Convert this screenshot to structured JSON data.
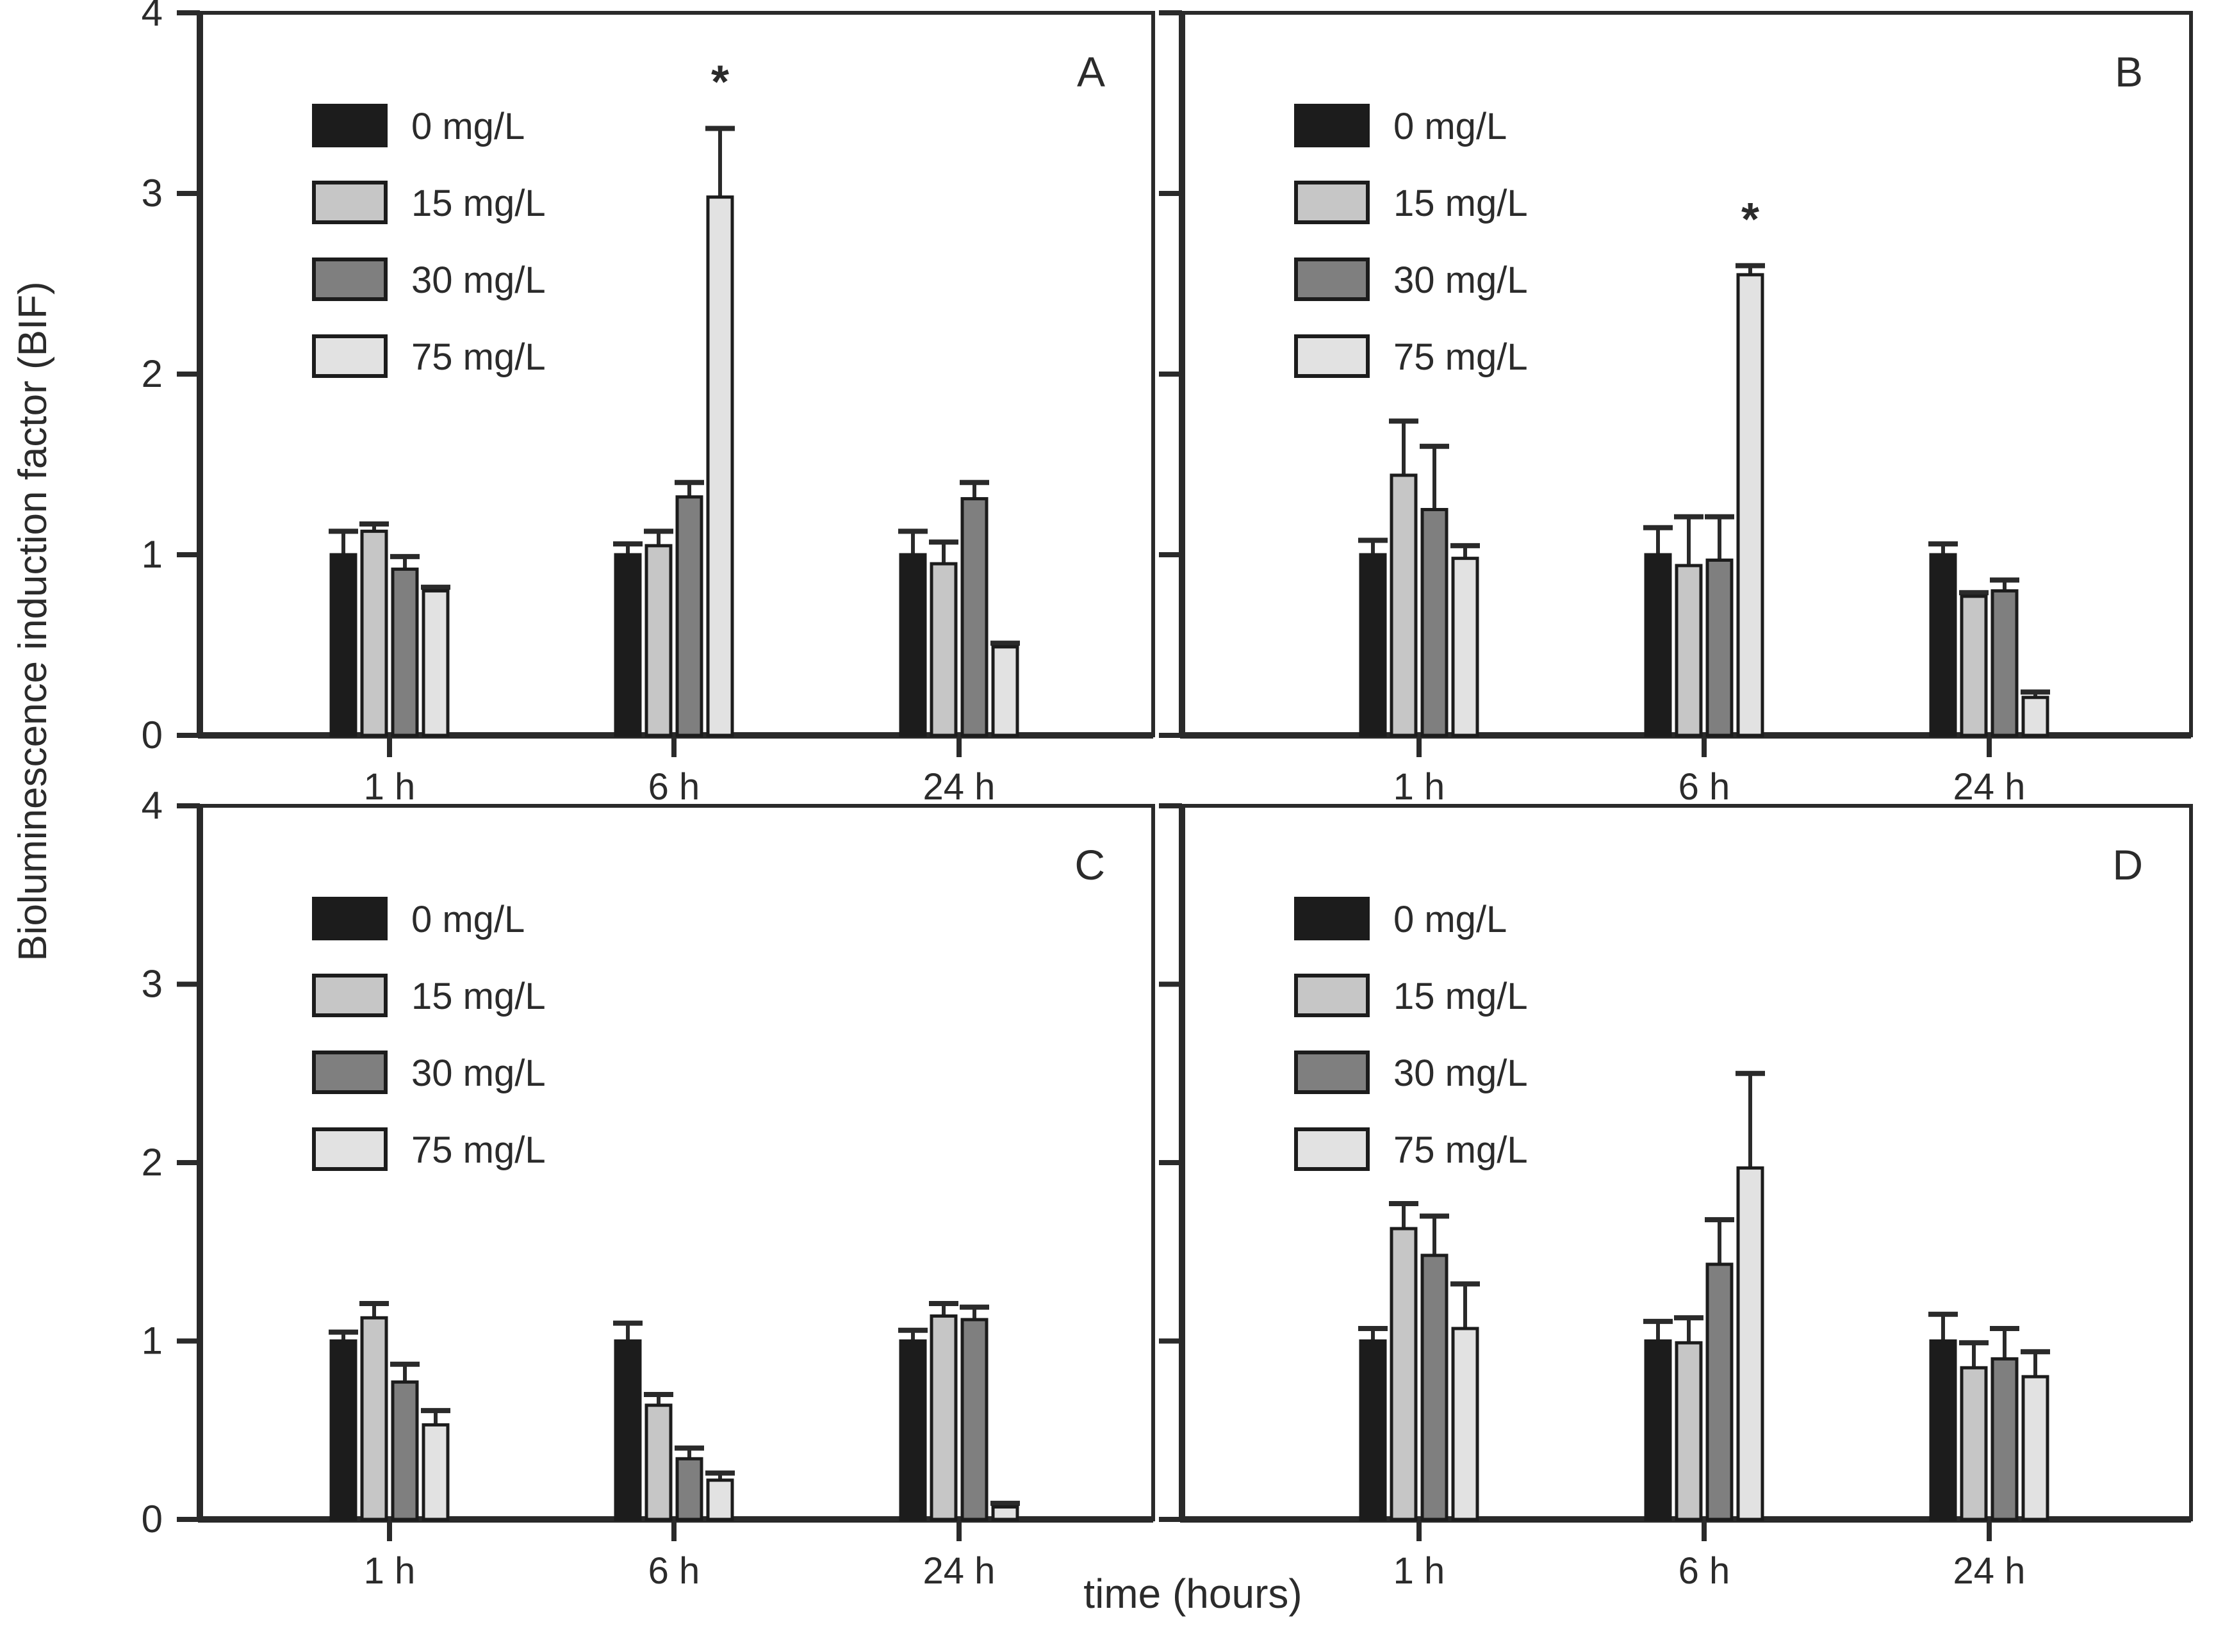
{
  "figure": {
    "y_axis_label": "Bioluminescence induction factor (BIF)",
    "x_axis_label": "time (hours)",
    "y_ticks": [
      "0",
      "1",
      "2",
      "3",
      "4"
    ],
    "ylim": [
      0,
      4
    ],
    "categories": [
      "1 h",
      "6 h",
      "24 h"
    ],
    "legend": [
      "0 mg/L",
      "15 mg/L",
      "30 mg/L",
      "75 mg/L"
    ],
    "significance_marker": "*",
    "colors": {
      "bar_0mgL": "#1c1c1c",
      "bar_15mgL": "#c6c6c6",
      "bar_30mgL": "#7f7f7f",
      "bar_75mgL": "#e2e2e2",
      "axis": "#2a2a2a",
      "text": "#2b2b2b",
      "background": "#ffffff"
    }
  },
  "chart_data": [
    {
      "type": "bar",
      "panel": "A",
      "categories": [
        "1 h",
        "6 h",
        "24 h"
      ],
      "ylim": [
        0,
        4
      ],
      "legend_visible": true,
      "y_labels_visible": true,
      "series": [
        {
          "name": "0 mg/L",
          "values": [
            1.0,
            1.0,
            1.0
          ],
          "errors": [
            0.13,
            0.06,
            0.13
          ],
          "sig": [
            false,
            false,
            false
          ]
        },
        {
          "name": "15 mg/L",
          "values": [
            1.13,
            1.05,
            0.95
          ],
          "errors": [
            0.04,
            0.08,
            0.12
          ],
          "sig": [
            false,
            false,
            false
          ]
        },
        {
          "name": "30 mg/L",
          "values": [
            0.92,
            1.32,
            1.31
          ],
          "errors": [
            0.07,
            0.08,
            0.09
          ],
          "sig": [
            false,
            false,
            false
          ]
        },
        {
          "name": "75 mg/L",
          "values": [
            0.8,
            2.98,
            0.49
          ],
          "errors": [
            0.02,
            0.38,
            0.02
          ],
          "sig": [
            false,
            true,
            false
          ]
        }
      ]
    },
    {
      "type": "bar",
      "panel": "B",
      "categories": [
        "1 h",
        "6 h",
        "24 h"
      ],
      "ylim": [
        0,
        4
      ],
      "legend_visible": true,
      "y_labels_visible": false,
      "series": [
        {
          "name": "0 mg/L",
          "values": [
            1.0,
            1.0,
            1.0
          ],
          "errors": [
            0.08,
            0.15,
            0.06
          ],
          "sig": [
            false,
            false,
            false
          ]
        },
        {
          "name": "15 mg/L",
          "values": [
            1.44,
            0.94,
            0.77
          ],
          "errors": [
            0.3,
            0.27,
            0.02
          ],
          "sig": [
            false,
            false,
            false
          ]
        },
        {
          "name": "30 mg/L",
          "values": [
            1.25,
            0.97,
            0.8
          ],
          "errors": [
            0.35,
            0.24,
            0.06
          ],
          "sig": [
            false,
            false,
            false
          ]
        },
        {
          "name": "75 mg/L",
          "values": [
            0.98,
            2.55,
            0.21
          ],
          "errors": [
            0.07,
            0.05,
            0.03
          ],
          "sig": [
            false,
            true,
            false
          ]
        }
      ]
    },
    {
      "type": "bar",
      "panel": "C",
      "categories": [
        "1 h",
        "6 h",
        "24 h"
      ],
      "ylim": [
        0,
        4
      ],
      "legend_visible": true,
      "y_labels_visible": true,
      "series": [
        {
          "name": "0 mg/L",
          "values": [
            1.0,
            1.0,
            1.0
          ],
          "errors": [
            0.05,
            0.1,
            0.06
          ],
          "sig": [
            false,
            false,
            false
          ]
        },
        {
          "name": "15 mg/L",
          "values": [
            1.13,
            0.64,
            1.14
          ],
          "errors": [
            0.08,
            0.06,
            0.07
          ],
          "sig": [
            false,
            false,
            false
          ]
        },
        {
          "name": "30 mg/L",
          "values": [
            0.77,
            0.34,
            1.12
          ],
          "errors": [
            0.1,
            0.06,
            0.07
          ],
          "sig": [
            false,
            false,
            false
          ]
        },
        {
          "name": "75 mg/L",
          "values": [
            0.53,
            0.22,
            0.07
          ],
          "errors": [
            0.08,
            0.04,
            0.02
          ],
          "sig": [
            false,
            false,
            false
          ]
        }
      ]
    },
    {
      "type": "bar",
      "panel": "D",
      "categories": [
        "1 h",
        "6 h",
        "24 h"
      ],
      "ylim": [
        0,
        4
      ],
      "legend_visible": true,
      "y_labels_visible": false,
      "series": [
        {
          "name": "0 mg/L",
          "values": [
            1.0,
            1.0,
            1.0
          ],
          "errors": [
            0.07,
            0.11,
            0.15
          ],
          "sig": [
            false,
            false,
            false
          ]
        },
        {
          "name": "15 mg/L",
          "values": [
            1.63,
            0.99,
            0.85
          ],
          "errors": [
            0.14,
            0.14,
            0.14
          ],
          "sig": [
            false,
            false,
            false
          ]
        },
        {
          "name": "30 mg/L",
          "values": [
            1.48,
            1.43,
            0.9
          ],
          "errors": [
            0.22,
            0.25,
            0.17
          ],
          "sig": [
            false,
            false,
            false
          ]
        },
        {
          "name": "75 mg/L",
          "values": [
            1.07,
            1.97,
            0.8
          ],
          "errors": [
            0.25,
            0.53,
            0.14
          ],
          "sig": [
            false,
            false,
            false
          ]
        }
      ]
    }
  ]
}
